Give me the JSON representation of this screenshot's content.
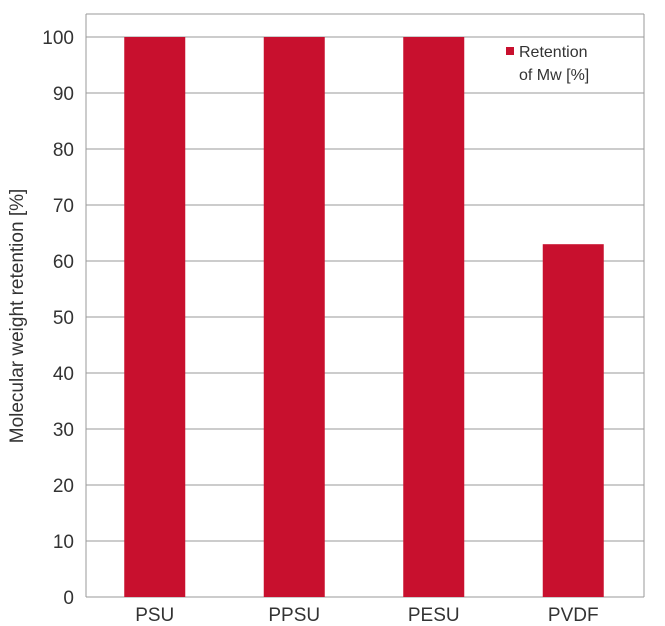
{
  "chart_data": {
    "type": "bar",
    "categories": [
      "PSU",
      "PPSU",
      "PESU",
      "PVDF"
    ],
    "series": [
      {
        "name": "Retention of Mw [%]",
        "values": [
          100,
          100,
          100,
          63
        ]
      }
    ],
    "legend_lines": [
      "Retention",
      "of Mw [%]"
    ],
    "title": "",
    "xlabel": "",
    "ylabel": "Molecular weight retention [%]",
    "ylim": [
      0,
      100
    ],
    "yticks": [
      0,
      10,
      20,
      30,
      40,
      50,
      60,
      70,
      80,
      90,
      100
    ],
    "grid": true,
    "legend_position": "top-right",
    "bar_color": "#c8102e",
    "grid_color": "#9a9a9a",
    "text_color": "#333333"
  }
}
